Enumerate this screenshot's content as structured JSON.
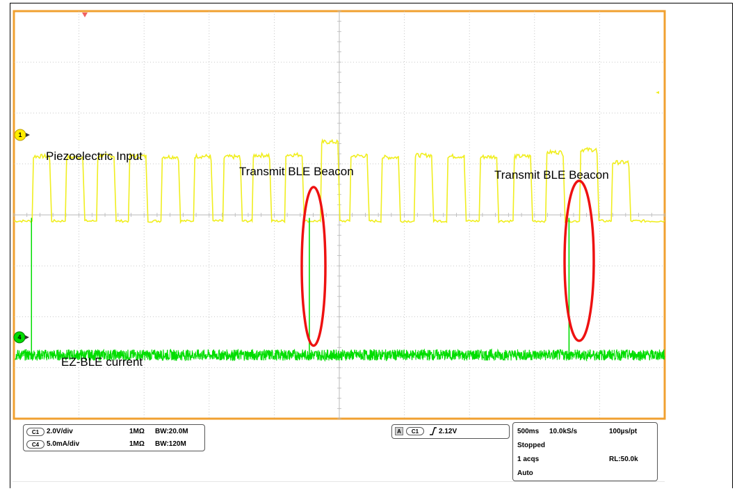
{
  "chart_data": {
    "type": "line",
    "title": "",
    "xlabel": "",
    "ylabel": "",
    "grid": true,
    "divisions": {
      "x": 10,
      "y": 8
    },
    "series": [
      {
        "channel": "C1",
        "color": "#f0ee1e",
        "pulse_starts_div": [
          0.28,
          0.79,
          1.27,
          1.76,
          2.26,
          2.76,
          3.21,
          3.66,
          4.16,
          4.71,
          5.16,
          5.64,
          6.15,
          6.65,
          7.15,
          7.67,
          8.17,
          8.69,
          9.18
        ],
        "pulse_peak_div": [
          1.27,
          1.25,
          1.28,
          1.27,
          1.26,
          1.27,
          1.26,
          1.29,
          1.3,
          1.55,
          1.28,
          1.25,
          1.29,
          1.27,
          1.26,
          1.27,
          1.35,
          1.4,
          1.15
        ],
        "low_div": -0.12
      },
      {
        "channel": "C4",
        "color": "#00dd00",
        "baseline_div": -2.75,
        "spikes_div": [
          {
            "x": 0.27,
            "peak": -0.06
          },
          {
            "x": 4.54,
            "peak": -0.06
          },
          {
            "x": 8.53,
            "peak": -0.06
          }
        ]
      }
    ],
    "annotations": [
      "Piezoelectric Input",
      "Transmit BLE Beacon",
      "Transmit BLE Beacon",
      "EZ-BLE current"
    ],
    "colors": {
      "frame": "#f0a030",
      "grid": "#b8b8b8",
      "highlight": "#ee1111"
    }
  },
  "labels": {
    "piezo": "Piezoelectric Input",
    "ble1": "Transmit BLE Beacon",
    "ble2": "Transmit BLE Beacon",
    "ezble": "EZ-BLE current"
  },
  "markers": {
    "ch1": "1",
    "ch4": "4"
  },
  "status": {
    "ch1_tag": "C1",
    "ch1_scale": "2.0V/div",
    "ch1_imp": "1MΩ",
    "ch1_bw": "BW:20.0M",
    "ch4_tag": "C4",
    "ch4_scale": "5.0mA/div",
    "ch4_imp": "1MΩ",
    "ch4_bw": "BW:120M",
    "trig_a": "A",
    "trig_src": "C1",
    "trig_level": "2.12V",
    "timebase": "500ms",
    "rate": "10.0kS/s",
    "per_pt": "100µs/pt",
    "state": "Stopped",
    "acqs": "1 acqs",
    "rl": "RL:50.0k",
    "mode": "Auto"
  }
}
